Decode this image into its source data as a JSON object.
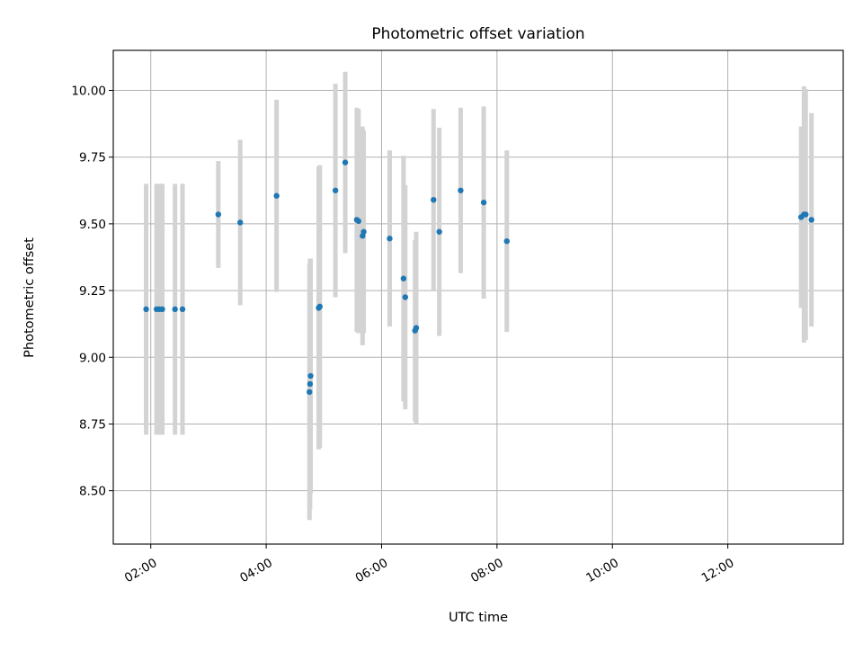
{
  "chart_data": {
    "type": "scatter",
    "title": "Photometric offset variation",
    "xlabel": "UTC time",
    "ylabel": "Photometric offset",
    "x_unit": "hours (UTC)",
    "xlim": [
      1.35,
      14.0
    ],
    "ylim": [
      8.3,
      10.15
    ],
    "grid": true,
    "legend": "none",
    "x_ticks": [
      {
        "value": 2,
        "label": "02:00"
      },
      {
        "value": 4,
        "label": "04:00"
      },
      {
        "value": 6,
        "label": "06:00"
      },
      {
        "value": 8,
        "label": "08:00"
      },
      {
        "value": 10,
        "label": "10:00"
      },
      {
        "value": 12,
        "label": "12:00"
      }
    ],
    "y_ticks": [
      {
        "value": 8.5,
        "label": "8.50"
      },
      {
        "value": 8.75,
        "label": "8.75"
      },
      {
        "value": 9.0,
        "label": "9.00"
      },
      {
        "value": 9.25,
        "label": "9.25"
      },
      {
        "value": 9.5,
        "label": "9.50"
      },
      {
        "value": 9.75,
        "label": "9.75"
      },
      {
        "value": 10.0,
        "label": "10.00"
      }
    ],
    "colors": {
      "point": "#1f77b4",
      "errorbar": "#d3d3d3",
      "grid": "#b0b0b0",
      "axes": "#000000"
    },
    "series": [
      {
        "points": [
          {
            "x": 1.92,
            "y": 9.18,
            "err": 0.47
          },
          {
            "x": 2.1,
            "y": 9.18,
            "err": 0.47
          },
          {
            "x": 2.15,
            "y": 9.18,
            "err": 0.47
          },
          {
            "x": 2.2,
            "y": 9.18,
            "err": 0.47
          },
          {
            "x": 2.42,
            "y": 9.18,
            "err": 0.47
          },
          {
            "x": 2.55,
            "y": 9.18,
            "err": 0.47
          },
          {
            "x": 3.17,
            "y": 9.535,
            "err": 0.2
          },
          {
            "x": 3.55,
            "y": 9.505,
            "err": 0.31
          },
          {
            "x": 4.18,
            "y": 9.605,
            "err": 0.36
          },
          {
            "x": 4.75,
            "y": 8.87,
            "err": 0.48
          },
          {
            "x": 4.76,
            "y": 8.9,
            "err": 0.47
          },
          {
            "x": 4.77,
            "y": 8.93,
            "err": 0.44
          },
          {
            "x": 4.91,
            "y": 9.185,
            "err": 0.53
          },
          {
            "x": 4.93,
            "y": 9.19,
            "err": 0.53
          },
          {
            "x": 5.2,
            "y": 9.625,
            "err": 0.4
          },
          {
            "x": 5.37,
            "y": 9.73,
            "err": 0.34
          },
          {
            "x": 5.57,
            "y": 9.515,
            "err": 0.42
          },
          {
            "x": 5.6,
            "y": 9.51,
            "err": 0.42
          },
          {
            "x": 5.67,
            "y": 9.455,
            "err": 0.41
          },
          {
            "x": 5.69,
            "y": 9.47,
            "err": 0.38
          },
          {
            "x": 6.14,
            "y": 9.445,
            "err": 0.33
          },
          {
            "x": 6.38,
            "y": 9.295,
            "err": 0.46
          },
          {
            "x": 6.41,
            "y": 9.225,
            "err": 0.42
          },
          {
            "x": 6.58,
            "y": 9.1,
            "err": 0.34
          },
          {
            "x": 6.6,
            "y": 9.11,
            "err": 0.36
          },
          {
            "x": 6.9,
            "y": 9.59,
            "err": 0.34
          },
          {
            "x": 7.0,
            "y": 9.47,
            "err": 0.39
          },
          {
            "x": 7.37,
            "y": 9.625,
            "err": 0.31
          },
          {
            "x": 7.77,
            "y": 9.58,
            "err": 0.36
          },
          {
            "x": 8.17,
            "y": 9.435,
            "err": 0.34
          },
          {
            "x": 13.27,
            "y": 9.525,
            "err": 0.34
          },
          {
            "x": 13.32,
            "y": 9.535,
            "err": 0.48
          },
          {
            "x": 13.35,
            "y": 9.535,
            "err": 0.47
          },
          {
            "x": 13.45,
            "y": 9.515,
            "err": 0.4
          }
        ]
      }
    ]
  }
}
